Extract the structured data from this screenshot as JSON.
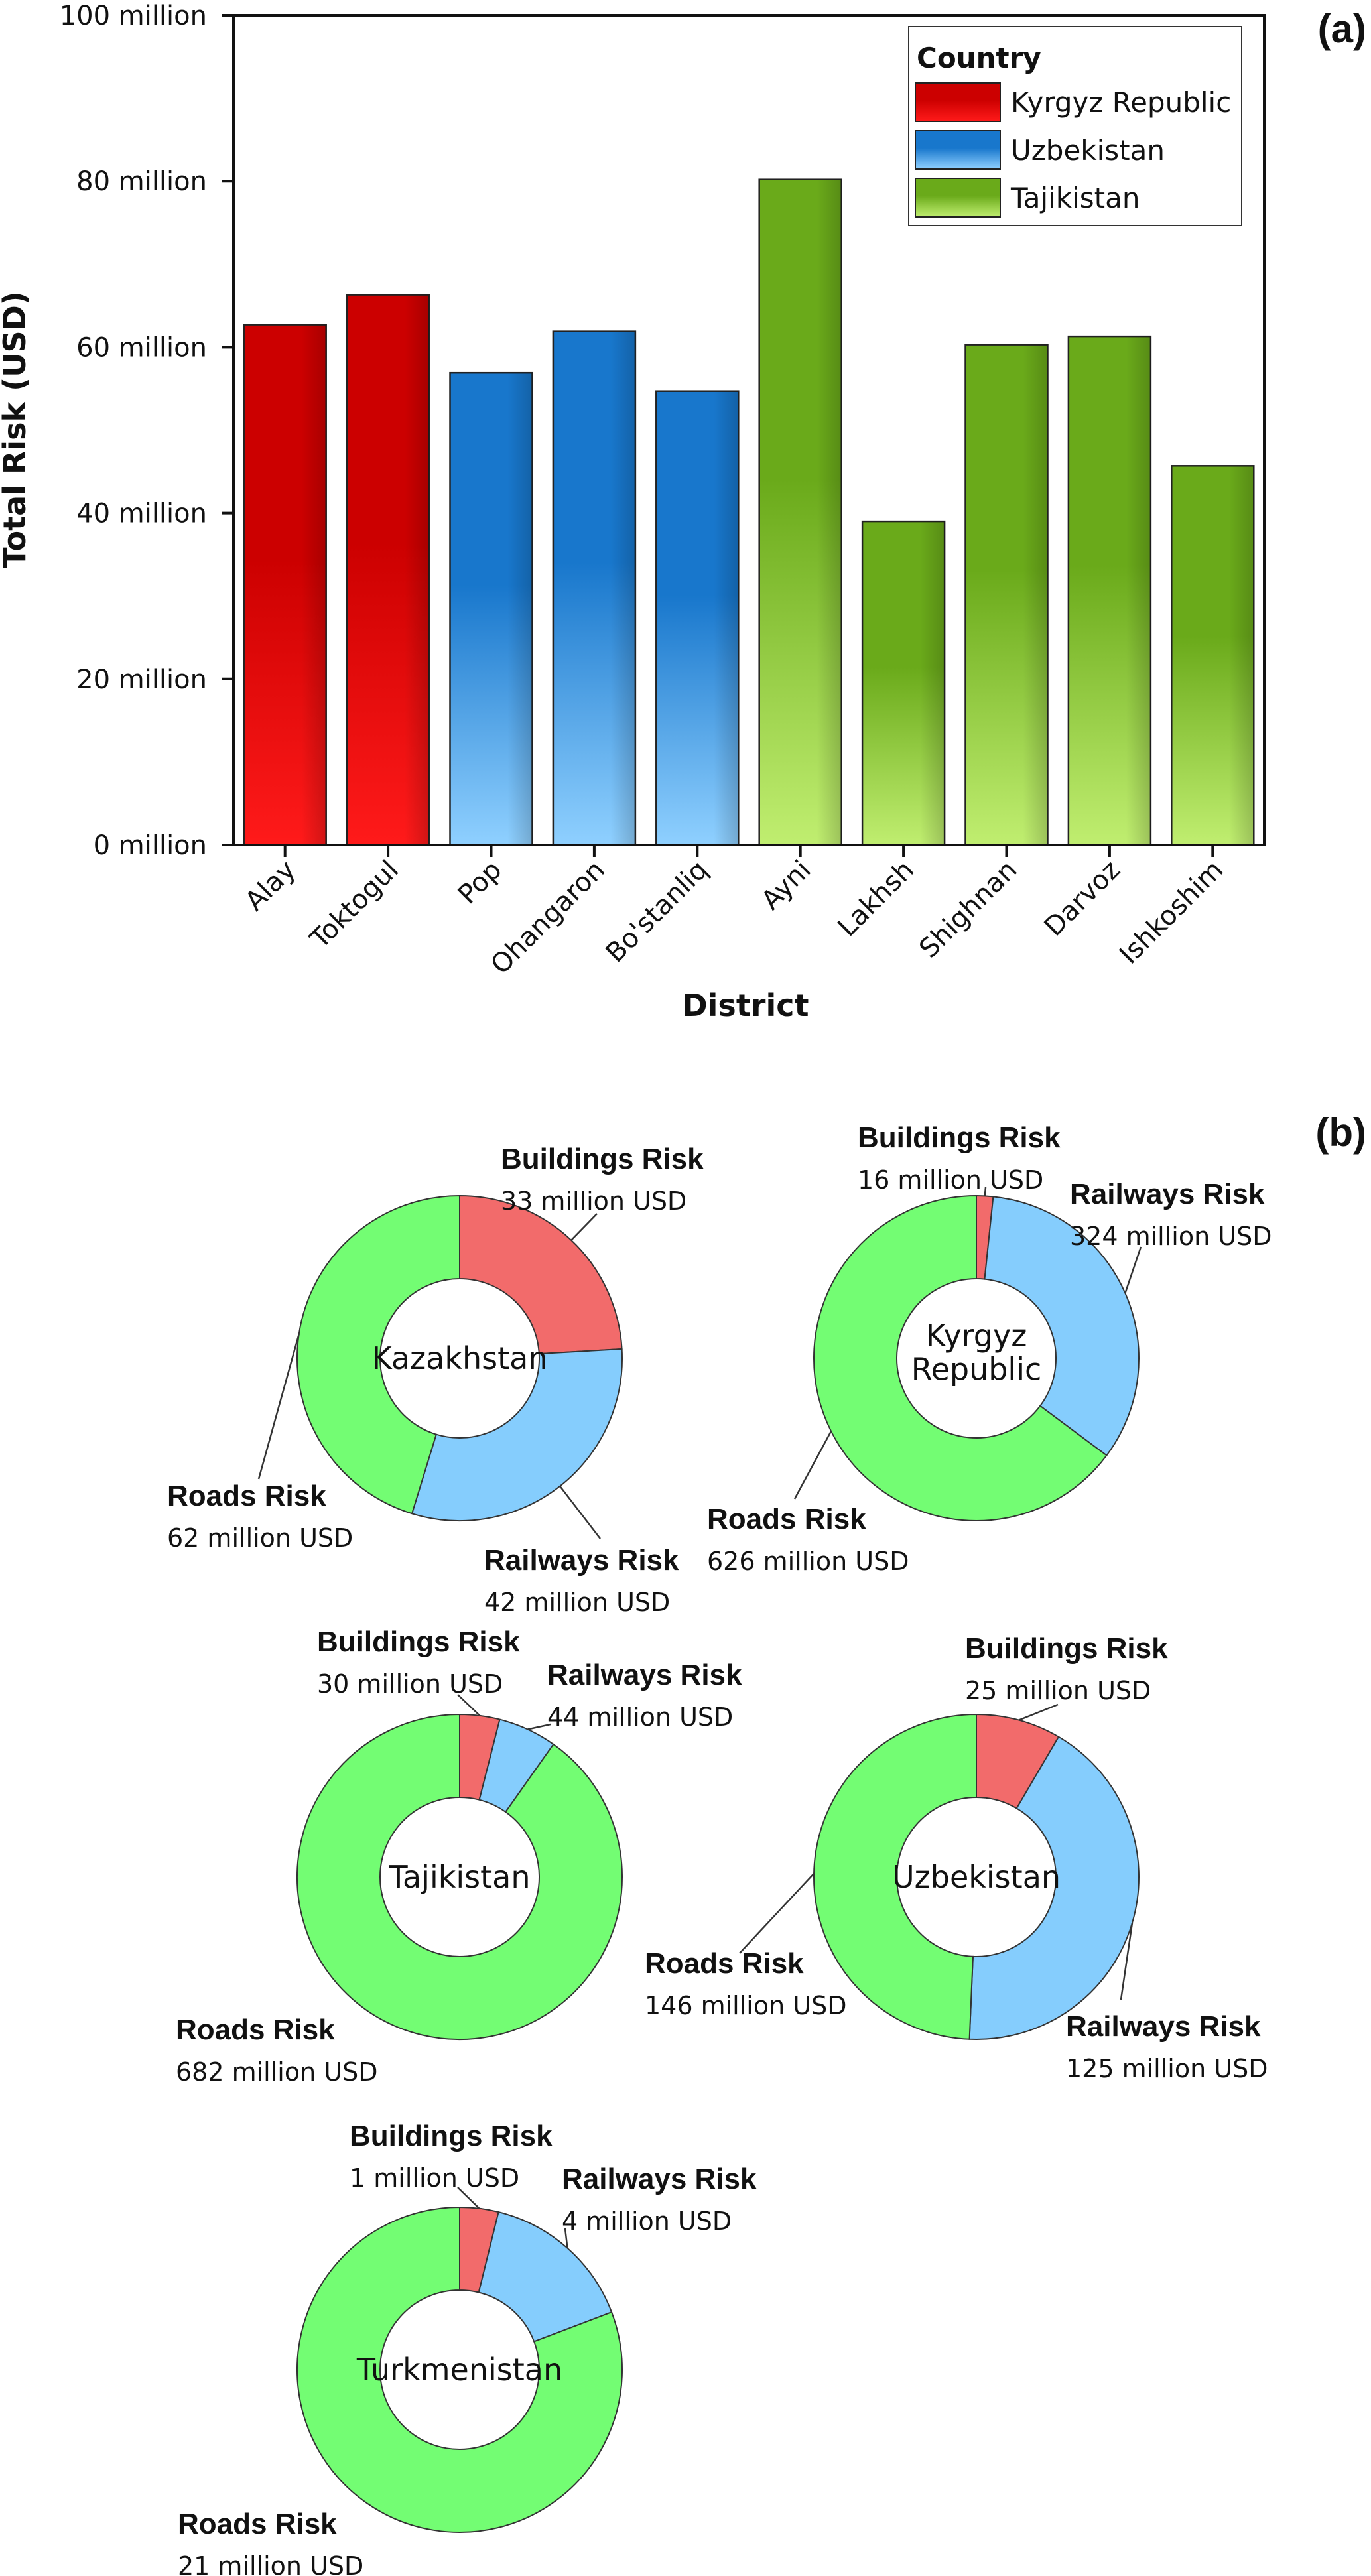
{
  "panels": {
    "a": "(a)",
    "b": "(b)"
  },
  "chart_data": [
    {
      "type": "bar",
      "xlabel": "District",
      "ylabel": "Total Risk (USD)",
      "ylim": [
        0,
        100000000
      ],
      "yticks": [
        "0 million",
        "20 million",
        "40 million",
        "60 million",
        "80 million",
        "100 million"
      ],
      "yticks_values": [
        0,
        20000000,
        40000000,
        60000000,
        80000000,
        100000000
      ],
      "legend_title": "Country",
      "legend_position": "top-right",
      "grid": false,
      "categories": [
        "Alay",
        "Toktogul",
        "Pop",
        "Ohangaron",
        "Bo'stanliq",
        "Ayni",
        "Lakhsh",
        "Shighnan",
        "Darvoz",
        "Ishkoshim"
      ],
      "values": [
        62700000,
        66300000,
        56900000,
        61900000,
        54700000,
        80200000,
        39000000,
        60300000,
        61300000,
        45700000
      ],
      "bar_country": [
        "Kyrgyz Republic",
        "Kyrgyz Republic",
        "Uzbekistan",
        "Uzbekistan",
        "Uzbekistan",
        "Tajikistan",
        "Tajikistan",
        "Tajikistan",
        "Tajikistan",
        "Tajikistan"
      ],
      "series": [
        {
          "name": "Kyrgyz Republic",
          "color": "#cc0000",
          "light": "#ff1a1a"
        },
        {
          "name": "Uzbekistan",
          "color": "#1877cc",
          "light": "#8fd0ff"
        },
        {
          "name": "Tajikistan",
          "color": "#6aaa1a",
          "light": "#c0ee70"
        }
      ]
    },
    {
      "type": "pie",
      "variant": "donut",
      "colors": {
        "Buildings Risk": "#f26b6b",
        "Railways Risk": "#85cdfd",
        "Roads Risk": "#73fd73"
      },
      "charts": [
        {
          "center": "Kazakhstan",
          "slices": [
            {
              "label": "Buildings Risk",
              "value": 33,
              "text": "33 million USD"
            },
            {
              "label": "Railways Risk",
              "value": 42,
              "text": "42 million USD"
            },
            {
              "label": "Roads Risk",
              "value": 62,
              "text": "62 million USD"
            }
          ]
        },
        {
          "center": "Kyrgyz Republic",
          "slices": [
            {
              "label": "Buildings Risk",
              "value": 16,
              "text": "16 million USD"
            },
            {
              "label": "Railways Risk",
              "value": 324,
              "text": "324 million USD"
            },
            {
              "label": "Roads Risk",
              "value": 626,
              "text": "626 million USD"
            }
          ]
        },
        {
          "center": "Tajikistan",
          "slices": [
            {
              "label": "Buildings Risk",
              "value": 30,
              "text": "30 million USD"
            },
            {
              "label": "Railways Risk",
              "value": 44,
              "text": "44 million USD"
            },
            {
              "label": "Roads Risk",
              "value": 682,
              "text": "682 million USD"
            }
          ]
        },
        {
          "center": "Uzbekistan",
          "slices": [
            {
              "label": "Buildings Risk",
              "value": 25,
              "text": "25 million USD"
            },
            {
              "label": "Railways Risk",
              "value": 125,
              "text": "125 million USD"
            },
            {
              "label": "Roads Risk",
              "value": 146,
              "text": "146 million USD"
            }
          ]
        },
        {
          "center": "Turkmenistan",
          "slices": [
            {
              "label": "Buildings Risk",
              "value": 1,
              "text": "1 million USD"
            },
            {
              "label": "Railways Risk",
              "value": 4,
              "text": "4 million USD"
            },
            {
              "label": "Roads Risk",
              "value": 21,
              "text": "21 million USD"
            }
          ]
        }
      ]
    }
  ]
}
